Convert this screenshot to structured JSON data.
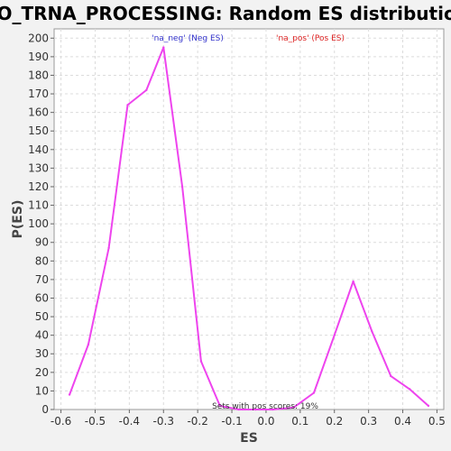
{
  "chart_data": {
    "type": "line",
    "title": "GO_TRNA_PROCESSING: Random ES distribution",
    "xlabel": "ES",
    "ylabel": "P(ES)",
    "xlim": [
      -0.62,
      0.52
    ],
    "ylim": [
      0,
      205
    ],
    "x_ticks": [
      -0.6,
      -0.5,
      -0.4,
      -0.3,
      -0.2,
      -0.1,
      0.0,
      0.1,
      0.2,
      0.3,
      0.4,
      0.5
    ],
    "y_ticks": [
      0,
      10,
      20,
      30,
      40,
      50,
      60,
      70,
      80,
      90,
      100,
      110,
      120,
      130,
      140,
      150,
      160,
      170,
      180,
      190,
      200
    ],
    "grid": true,
    "line_color": "#ee44ee",
    "legend": [
      {
        "label": "'na_neg' (Neg ES)",
        "color": "#3333cc"
      },
      {
        "label": "'na_pos' (Pos ES)",
        "color": "#dd2222"
      }
    ],
    "annotation": "Sets with pos scores: 19%",
    "series": [
      {
        "x": [
          -0.575,
          -0.52,
          -0.46,
          -0.405,
          -0.35,
          -0.3,
          -0.245,
          -0.19,
          -0.135,
          -0.08,
          -0.03,
          0.02,
          0.08,
          0.14,
          0.2,
          0.255,
          0.31,
          0.365,
          0.42,
          0.475
        ],
        "y": [
          8,
          35,
          87,
          164,
          172,
          195,
          120,
          26,
          2,
          0,
          0,
          0,
          1,
          9,
          40,
          69,
          42,
          18,
          11,
          2
        ]
      }
    ]
  }
}
